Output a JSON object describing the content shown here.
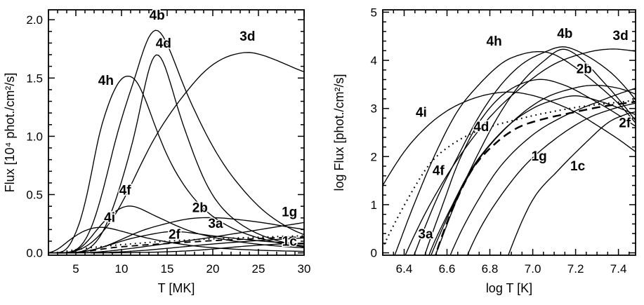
{
  "figure": {
    "description": "Two-panel plot of spectral line and continuum fluxes versus temperature",
    "colors": {
      "foreground": "#000000",
      "background": "#ffffff"
    }
  },
  "chart_data": [
    {
      "type": "line",
      "panel": "linear",
      "xlabel": "T [MK]",
      "ylabel": "Flux [10⁴ phot./cm²/s]",
      "xlim": [
        2,
        30
      ],
      "ylim": [
        -0.02,
        2.085
      ],
      "grid": false,
      "legend": "curve labels placed inline, no legend box",
      "xticks": {
        "major": [
          5,
          10,
          15,
          20,
          25,
          30
        ],
        "labels": [
          "5",
          "10",
          "15",
          "20",
          "25",
          "30"
        ],
        "minor_step": 1
      },
      "yticks": {
        "major": [
          0,
          0.5,
          1,
          1.5,
          2
        ],
        "labels": [
          "0.0",
          "0.5",
          "1.0",
          "1.5",
          "2.0"
        ],
        "minor_step": 0.1
      },
      "curve_labels": [
        {
          "text": "4b",
          "x": 13.9,
          "y": 2.0
        },
        {
          "text": "4d",
          "x": 14.6,
          "y": 1.76
        },
        {
          "text": "3d",
          "x": 23.8,
          "y": 1.82
        },
        {
          "text": "4h",
          "x": 8.3,
          "y": 1.44
        },
        {
          "text": "4f",
          "x": 10.4,
          "y": 0.5
        },
        {
          "text": "4i",
          "x": 8.7,
          "y": 0.265
        },
        {
          "text": "2b",
          "x": 18.6,
          "y": 0.35
        },
        {
          "text": "3a",
          "x": 20.3,
          "y": 0.215
        },
        {
          "text": "1g",
          "x": 28.4,
          "y": 0.315
        },
        {
          "text": "2f",
          "x": 15.8,
          "y": 0.122
        },
        {
          "text": "1c",
          "x": 28.4,
          "y": 0.062
        }
      ],
      "series_peaks": [
        {
          "label": "4h",
          "style": "solid",
          "peak_T_MK": 10.4,
          "peak_flux_1e4": 1.52
        },
        {
          "label": "4b",
          "style": "solid",
          "peak_T_MK": 14.0,
          "peak_flux_1e4": 1.91
        },
        {
          "label": "4d",
          "style": "solid",
          "peak_T_MK": 13.8,
          "peak_flux_1e4": 1.69
        },
        {
          "label": "3d",
          "style": "solid",
          "peak_T_MK": 23.5,
          "peak_flux_1e4": 1.72
        },
        {
          "label": "2b",
          "style": "solid",
          "peak_T_MK": 20.0,
          "peak_flux_1e4": 0.3
        },
        {
          "label": "4f",
          "style": "solid",
          "peak_T_MK": 10.5,
          "peak_flux_1e4": 0.4
        },
        {
          "label": "4i",
          "style": "solid",
          "peak_T_MK": 8.0,
          "peak_flux_1e4": 0.22
        },
        {
          "label": "3a",
          "style": "solid",
          "peak_T_MK": 16.0,
          "peak_flux_1e4": 0.18
        },
        {
          "label": "1g",
          "style": "solid",
          "peak_T_MK": 30.0,
          "peak_flux_1e4": 0.28,
          "note": "still rising at 30 MK"
        },
        {
          "label": "1c",
          "style": "solid",
          "peak_T_MK": 30.0,
          "peak_flux_1e4": 0.09,
          "note": "still rising at 30 MK"
        },
        {
          "label": "2f",
          "style": "solid",
          "peak_T_MK": 30.0,
          "peak_flux_1e4": 0.13,
          "note": "still rising at 30 MK"
        },
        {
          "label": "dotted-curve",
          "style": "dotted",
          "peak_T_MK": 30.0,
          "peak_flux_1e4": 0.15
        },
        {
          "label": "dashed-curve",
          "style": "dashed",
          "peak_T_MK": 30.0,
          "peak_flux_1e4": 0.14
        }
      ]
    },
    {
      "type": "line",
      "panel": "loglog",
      "xlabel": "log T [K]",
      "ylabel": "log Flux [phot./cm²/s]",
      "xlim": [
        6.3,
        7.48
      ],
      "ylim": [
        -0.05,
        5.05
      ],
      "grid": false,
      "legend": "curve labels placed inline, no legend box",
      "xticks": {
        "major": [
          6.4,
          6.6,
          6.8,
          7.0,
          7.2,
          7.4
        ],
        "labels": [
          "6.4",
          "6.6",
          "6.8",
          "7.0",
          "7.2",
          "7.4"
        ],
        "minor_step": 0.05
      },
      "yticks": {
        "major": [
          0,
          1,
          2,
          3,
          4,
          5
        ],
        "labels": [
          "0",
          "1",
          "2",
          "3",
          "4",
          "5"
        ],
        "minor_step": 0.2
      },
      "curve_labels": [
        {
          "text": "4h",
          "x": 6.82,
          "y": 4.31
        },
        {
          "text": "4b",
          "x": 7.15,
          "y": 4.47
        },
        {
          "text": "3d",
          "x": 7.41,
          "y": 4.42
        },
        {
          "text": "2b",
          "x": 7.24,
          "y": 3.73
        },
        {
          "text": "4i",
          "x": 6.48,
          "y": 2.83
        },
        {
          "text": "4d",
          "x": 6.76,
          "y": 2.53
        },
        {
          "text": "4f",
          "x": 6.56,
          "y": 1.62
        },
        {
          "text": "3a",
          "x": 6.5,
          "y": 0.3
        },
        {
          "text": "1g",
          "x": 7.03,
          "y": 1.92
        },
        {
          "text": "1c",
          "x": 7.21,
          "y": 1.71
        },
        {
          "text": "2f",
          "x": 7.43,
          "y": 2.61
        }
      ],
      "series": [
        {
          "label": "4h",
          "style": "solid",
          "points_logT_logFlux": [
            [
              6.3,
              -0.7
            ],
            [
              6.36,
              0
            ],
            [
              6.45,
              1.05
            ],
            [
              6.55,
              2.1
            ],
            [
              6.65,
              2.95
            ],
            [
              6.75,
              3.5
            ],
            [
              6.85,
              3.92
            ],
            [
              6.93,
              4.1
            ],
            [
              7.02,
              4.18
            ],
            [
              7.1,
              4.12
            ],
            [
              7.2,
              3.85
            ],
            [
              7.3,
              3.5
            ],
            [
              7.4,
              3.1
            ],
            [
              7.48,
              2.7
            ]
          ]
        },
        {
          "label": "4b",
          "style": "solid",
          "points_logT_logFlux": [
            [
              6.38,
              -0.8
            ],
            [
              6.45,
              0
            ],
            [
              6.55,
              1.1
            ],
            [
              6.65,
              2.0
            ],
            [
              6.75,
              2.84
            ],
            [
              6.85,
              3.48
            ],
            [
              6.95,
              3.92
            ],
            [
              7.05,
              4.16
            ],
            [
              7.146,
              4.28
            ],
            [
              7.25,
              4.1
            ],
            [
              7.35,
              3.8
            ],
            [
              7.42,
              3.5
            ],
            [
              7.48,
              3.18
            ]
          ]
        },
        {
          "label": "4d",
          "style": "solid",
          "points_logT_logFlux": [
            [
              6.48,
              -0.8
            ],
            [
              6.55,
              0
            ],
            [
              6.65,
              1.15
            ],
            [
              6.75,
              2.1
            ],
            [
              6.85,
              2.92
            ],
            [
              6.95,
              3.55
            ],
            [
              7.05,
              3.98
            ],
            [
              7.14,
              4.23
            ],
            [
              7.23,
              4.02
            ],
            [
              7.32,
              3.6
            ],
            [
              7.4,
              3.2
            ],
            [
              7.48,
              2.75
            ]
          ]
        },
        {
          "label": "3d",
          "style": "solid",
          "points_logT_logFlux": [
            [
              6.34,
              -0.8
            ],
            [
              6.41,
              0
            ],
            [
              6.52,
              1.0
            ],
            [
              6.65,
              1.95
            ],
            [
              6.8,
              2.82
            ],
            [
              6.95,
              3.45
            ],
            [
              7.1,
              3.92
            ],
            [
              7.25,
              4.16
            ],
            [
              7.37,
              4.235
            ],
            [
              7.48,
              4.19
            ]
          ]
        },
        {
          "label": "2b",
          "style": "solid",
          "points_logT_logFlux": [
            [
              6.46,
              -0.8
            ],
            [
              6.53,
              0
            ],
            [
              6.63,
              1.0
            ],
            [
              6.75,
              1.95
            ],
            [
              6.9,
              2.7
            ],
            [
              7.05,
              3.2
            ],
            [
              7.2,
              3.43
            ],
            [
              7.3,
              3.48
            ],
            [
              7.4,
              3.42
            ],
            [
              7.48,
              3.3
            ]
          ]
        },
        {
          "label": "4f",
          "style": "solid",
          "points_logT_logFlux": [
            [
              6.44,
              -0.9
            ],
            [
              6.5,
              0
            ],
            [
              6.58,
              1.0
            ],
            [
              6.66,
              1.95
            ],
            [
              6.76,
              2.78
            ],
            [
              6.88,
              3.35
            ],
            [
              7.02,
              3.6
            ],
            [
              7.15,
              3.48
            ],
            [
              7.28,
              3.18
            ],
            [
              7.38,
              2.92
            ],
            [
              7.48,
              2.63
            ]
          ]
        },
        {
          "label": "4i",
          "style": "solid",
          "points_logT_logFlux": [
            [
              6.26,
              1.05
            ],
            [
              6.3,
              1.4
            ],
            [
              6.4,
              2.1
            ],
            [
              6.5,
              2.6
            ],
            [
              6.6,
              2.95
            ],
            [
              6.7,
              3.17
            ],
            [
              6.8,
              3.3
            ],
            [
              6.9,
              3.34
            ],
            [
              7.0,
              3.27
            ],
            [
              7.1,
              3.12
            ],
            [
              7.2,
              2.92
            ],
            [
              7.3,
              2.65
            ],
            [
              7.4,
              2.36
            ],
            [
              7.48,
              2.1
            ]
          ]
        },
        {
          "label": "3a",
          "style": "solid",
          "points_logT_logFlux": [
            [
              6.46,
              -0.9
            ],
            [
              6.52,
              0
            ],
            [
              6.62,
              0.95
            ],
            [
              6.73,
              1.85
            ],
            [
              6.87,
              2.58
            ],
            [
              7.0,
              3.0
            ],
            [
              7.12,
              3.2
            ],
            [
              7.21,
              3.26
            ],
            [
              7.32,
              3.14
            ],
            [
              7.42,
              2.98
            ],
            [
              7.48,
              2.87
            ]
          ]
        },
        {
          "label": "1g",
          "style": "solid",
          "points_logT_logFlux": [
            [
              6.55,
              -0.9
            ],
            [
              6.62,
              0
            ],
            [
              6.72,
              0.9
            ],
            [
              6.85,
              1.8
            ],
            [
              7.0,
              2.45
            ],
            [
              7.15,
              2.85
            ],
            [
              7.3,
              3.13
            ],
            [
              7.4,
              3.3
            ],
            [
              7.48,
              3.42
            ]
          ]
        },
        {
          "label": "1c",
          "style": "solid",
          "points_logT_logFlux": [
            [
              6.82,
              -1.0
            ],
            [
              6.89,
              0
            ],
            [
              7.0,
              1.1
            ],
            [
              7.12,
              1.72
            ],
            [
              7.25,
              2.3
            ],
            [
              7.35,
              2.7
            ],
            [
              7.43,
              2.87
            ],
            [
              7.48,
              2.93
            ]
          ]
        },
        {
          "label": "2f",
          "style": "solid",
          "points_logT_logFlux": [
            [
              6.63,
              -0.9
            ],
            [
              6.7,
              0
            ],
            [
              6.8,
              0.85
            ],
            [
              6.95,
              1.75
            ],
            [
              7.1,
              2.35
            ],
            [
              7.25,
              2.78
            ],
            [
              7.38,
              3.0
            ],
            [
              7.48,
              3.11
            ]
          ]
        },
        {
          "label": "dotted-curve",
          "style": "dotted",
          "points_logT_logFlux": [
            [
              6.26,
              -0.4
            ],
            [
              6.3,
              0.1
            ],
            [
              6.36,
              0.65
            ],
            [
              6.44,
              1.3
            ],
            [
              6.52,
              1.85
            ],
            [
              6.6,
              2.18
            ],
            [
              6.7,
              2.45
            ],
            [
              6.8,
              2.62
            ],
            [
              6.9,
              2.74
            ],
            [
              7.0,
              2.85
            ],
            [
              7.1,
              2.94
            ],
            [
              7.2,
              3.02
            ],
            [
              7.3,
              3.08
            ],
            [
              7.4,
              3.13
            ],
            [
              7.48,
              3.17
            ]
          ]
        },
        {
          "label": "dashed-curve",
          "style": "dashed",
          "points_logT_logFlux": [
            [
              6.49,
              -1.0
            ],
            [
              6.55,
              0
            ],
            [
              6.63,
              0.95
            ],
            [
              6.72,
              1.75
            ],
            [
              6.82,
              2.25
            ],
            [
              6.93,
              2.6
            ],
            [
              7.05,
              2.78
            ],
            [
              7.17,
              2.9
            ],
            [
              7.3,
              3.02
            ],
            [
              7.4,
              3.09
            ],
            [
              7.48,
              3.14
            ]
          ]
        }
      ]
    }
  ]
}
